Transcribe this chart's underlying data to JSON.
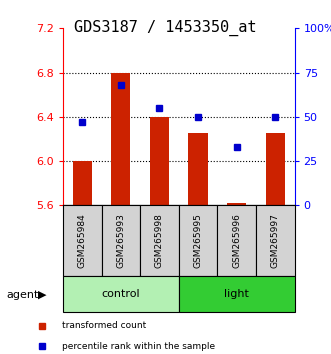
{
  "title": "GDS3187 / 1453350_at",
  "samples": [
    "GSM265984",
    "GSM265993",
    "GSM265998",
    "GSM265995",
    "GSM265996",
    "GSM265997"
  ],
  "red_values": [
    6.0,
    6.8,
    6.4,
    6.25,
    5.62,
    6.25
  ],
  "blue_values": [
    47,
    68,
    55,
    50,
    33,
    50
  ],
  "ylim_left": [
    5.6,
    7.2
  ],
  "ylim_right": [
    0,
    100
  ],
  "yticks_left": [
    5.6,
    6.0,
    6.4,
    6.8,
    7.2
  ],
  "yticks_right": [
    0,
    25,
    50,
    75,
    100
  ],
  "ytick_labels_right": [
    "0",
    "25",
    "50",
    "75",
    "100%"
  ],
  "bar_color": "#cc2200",
  "blue_color": "#0000cc",
  "bar_bottom": 5.6,
  "group_control_color": "#b3f0b3",
  "group_light_color": "#33cc33",
  "group_names": [
    "control",
    "light"
  ],
  "legend_red": "transformed count",
  "legend_blue": "percentile rank within the sample",
  "agent_label": "agent",
  "title_fontsize": 11,
  "tick_fontsize": 8,
  "label_fontsize": 8,
  "sample_box_color": "#d3d3d3"
}
